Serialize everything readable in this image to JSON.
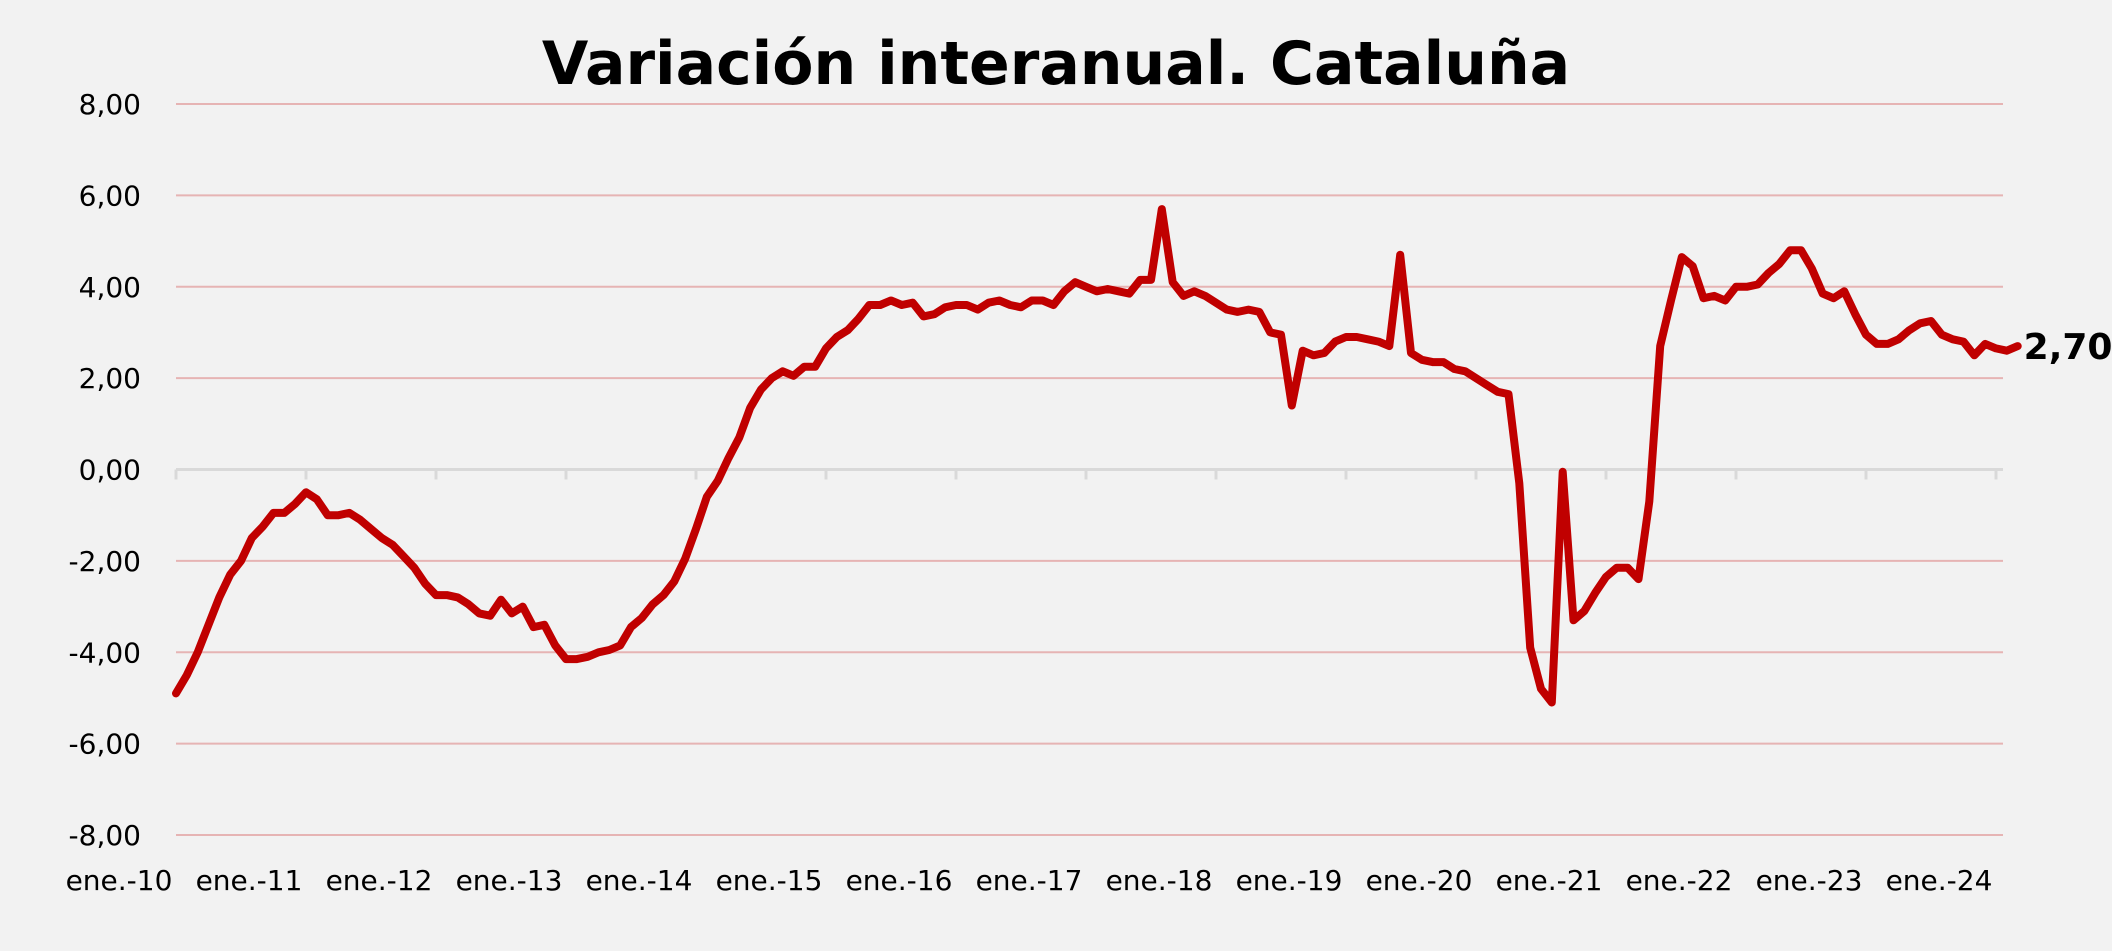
{
  "chart_data": {
    "type": "line",
    "title": "Variación interanual. Cataluña",
    "xlabel": "",
    "ylabel": "",
    "ylim": [
      -8,
      8
    ],
    "y_ticks": [
      -8,
      -6,
      -4,
      -2,
      0,
      2,
      4,
      6,
      8
    ],
    "y_tick_labels": [
      "-8,00",
      "-6,00",
      "-4,00",
      "-2,00",
      "0,00",
      "2,00",
      "4,00",
      "6,00",
      "8,00"
    ],
    "x_tick_labels": [
      "ene.-10",
      "ene.-11",
      "ene.-12",
      "ene.-13",
      "ene.-14",
      "ene.-15",
      "ene.-16",
      "ene.-17",
      "ene.-18",
      "ene.-19",
      "ene.-20",
      "ene.-21",
      "ene.-22",
      "ene.-23",
      "ene.-24"
    ],
    "grid": "horizontal",
    "line_color": "#c00000",
    "grid_color": "#e6b4b4",
    "end_label": "2,70",
    "series": [
      {
        "name": "",
        "x_start": "ene.-10",
        "frequency": "monthly",
        "values": [
          -4.9,
          -4.5,
          -4.0,
          -3.4,
          -2.8,
          -2.3,
          -2.0,
          -1.5,
          -1.25,
          -0.95,
          -0.95,
          -0.75,
          -0.5,
          -0.65,
          -1.0,
          -1.0,
          -0.95,
          -1.1,
          -1.3,
          -1.5,
          -1.65,
          -1.9,
          -2.15,
          -2.5,
          -2.75,
          -2.75,
          -2.8,
          -2.95,
          -3.15,
          -3.2,
          -2.85,
          -3.15,
          -3.0,
          -3.45,
          -3.4,
          -3.85,
          -4.15,
          -4.15,
          -4.1,
          -4.0,
          -3.95,
          -3.85,
          -3.45,
          -3.25,
          -2.95,
          -2.75,
          -2.45,
          -1.95,
          -1.3,
          -0.6,
          -0.25,
          0.25,
          0.7,
          1.35,
          1.75,
          2.0,
          2.15,
          2.05,
          2.25,
          2.25,
          2.65,
          2.9,
          3.05,
          3.3,
          3.6,
          3.6,
          3.7,
          3.6,
          3.65,
          3.35,
          3.4,
          3.55,
          3.6,
          3.6,
          3.5,
          3.65,
          3.7,
          3.6,
          3.55,
          3.7,
          3.7,
          3.6,
          3.9,
          4.1,
          4.0,
          3.9,
          3.95,
          3.9,
          3.85,
          4.15,
          4.15,
          5.7,
          4.1,
          3.8,
          3.9,
          3.8,
          3.65,
          3.5,
          3.45,
          3.5,
          3.45,
          3.0,
          2.95,
          1.4,
          2.6,
          2.5,
          2.55,
          2.8,
          2.9,
          2.9,
          2.85,
          2.8,
          2.7,
          4.7,
          2.55,
          2.4,
          2.35,
          2.35,
          2.2,
          2.15,
          2.0,
          1.85,
          1.7,
          1.65,
          -0.3,
          -3.9,
          -4.8,
          -5.1,
          -0.05,
          -3.3,
          -3.1,
          -2.7,
          -2.35,
          -2.15,
          -2.15,
          -2.4,
          -0.7,
          2.7,
          3.7,
          4.65,
          4.45,
          3.75,
          3.8,
          3.7,
          4.0,
          4.0,
          4.05,
          4.3,
          4.5,
          4.8,
          4.8,
          4.4,
          3.85,
          3.75,
          3.9,
          3.4,
          2.95,
          2.75,
          2.75,
          2.85,
          3.05,
          3.2,
          3.25,
          2.95,
          2.85,
          2.8,
          2.5,
          2.75,
          2.65,
          2.6,
          2.7
        ]
      }
    ]
  }
}
